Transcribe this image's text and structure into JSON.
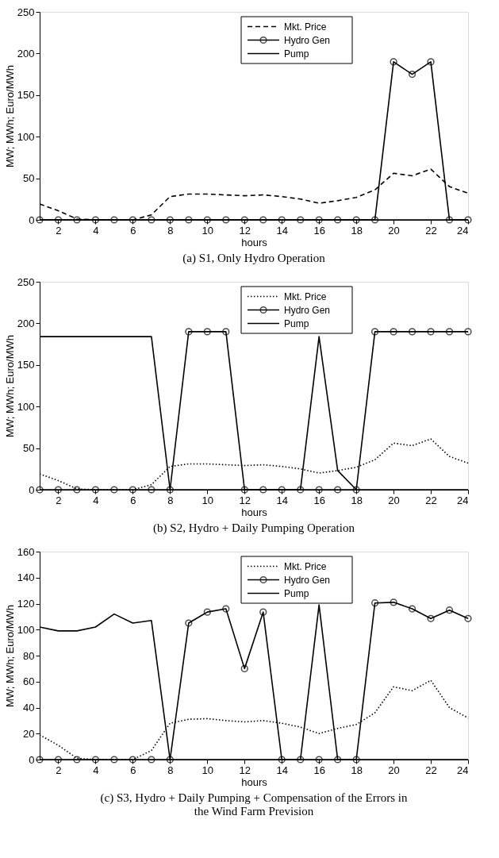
{
  "chart_data": [
    {
      "type": "line",
      "title": "(a) S1, Only Hydro Operation",
      "xlabel": "hours",
      "ylabel": "MW; MWh; Euro/MWh",
      "x": [
        1,
        2,
        3,
        4,
        5,
        6,
        7,
        8,
        9,
        10,
        11,
        12,
        13,
        14,
        15,
        16,
        17,
        18,
        19,
        20,
        21,
        22,
        23,
        24
      ],
      "xlim": [
        1,
        24
      ],
      "xticks": [
        2,
        4,
        6,
        8,
        10,
        12,
        14,
        16,
        18,
        20,
        22,
        24
      ],
      "ylim": [
        0,
        250
      ],
      "yticks": [
        0,
        50,
        100,
        150,
        200,
        250
      ],
      "grid": false,
      "legend": "top",
      "series": [
        {
          "name": "Mkt. Price",
          "color": "#000000",
          "line_style": "dashed",
          "marker": "none",
          "values": [
            19,
            11,
            1,
            0,
            0,
            0,
            6,
            28,
            31,
            31,
            30,
            29,
            30,
            28,
            25,
            20,
            23,
            27,
            36,
            56,
            53,
            61,
            40,
            32
          ]
        },
        {
          "name": "Hydro Gen",
          "color": "#000000",
          "line_style": "solid",
          "marker": "circle",
          "values": [
            0,
            0,
            0,
            0,
            0,
            0,
            0,
            0,
            0,
            0,
            0,
            0,
            0,
            0,
            0,
            0,
            0,
            0,
            0,
            190,
            175,
            190,
            0,
            0
          ]
        },
        {
          "name": "Pump",
          "color": "#000000",
          "line_style": "solid",
          "marker": "none",
          "values": [
            0,
            0,
            0,
            0,
            0,
            0,
            0,
            0,
            0,
            0,
            0,
            0,
            0,
            0,
            0,
            0,
            0,
            0,
            0,
            0,
            0,
            0,
            0,
            0
          ]
        }
      ]
    },
    {
      "type": "line",
      "title": "(b) S2, Hydro + Daily Pumping Operation",
      "xlabel": "hours",
      "ylabel": "MW; MWh; Euro/MWh",
      "x": [
        1,
        2,
        3,
        4,
        5,
        6,
        7,
        8,
        9,
        10,
        11,
        12,
        13,
        14,
        15,
        16,
        17,
        18,
        19,
        20,
        21,
        22,
        23,
        24
      ],
      "xlim": [
        1,
        24
      ],
      "xticks": [
        2,
        4,
        6,
        8,
        10,
        12,
        14,
        16,
        18,
        20,
        22,
        24
      ],
      "ylim": [
        0,
        250
      ],
      "yticks": [
        0,
        50,
        100,
        150,
        200,
        250
      ],
      "grid": false,
      "legend": "top",
      "series": [
        {
          "name": "Mkt. Price",
          "color": "#000000",
          "line_style": "dotted",
          "marker": "none",
          "values": [
            19,
            11,
            1,
            0,
            0,
            0,
            6,
            28,
            31,
            31,
            30,
            29,
            30,
            28,
            25,
            20,
            23,
            27,
            36,
            56,
            53,
            61,
            40,
            32
          ]
        },
        {
          "name": "Hydro Gen",
          "color": "#000000",
          "line_style": "solid",
          "marker": "circle",
          "values": [
            0,
            0,
            0,
            0,
            0,
            0,
            0,
            0,
            190,
            190,
            190,
            0,
            0,
            0,
            0,
            0,
            0,
            0,
            190,
            190,
            190,
            190,
            190,
            190
          ]
        },
        {
          "name": "Pump",
          "color": "#000000",
          "line_style": "solid",
          "marker": "none",
          "values": [
            184,
            184,
            184,
            184,
            184,
            184,
            184,
            0,
            0,
            0,
            0,
            0,
            0,
            0,
            0,
            184,
            23,
            0,
            0,
            0,
            0,
            0,
            0,
            0
          ]
        }
      ]
    },
    {
      "type": "line",
      "title": "(c) S3, Hydro + Daily Pumping + Compensation of the Errors in the Wind Farm Prevision",
      "xlabel": "hours",
      "ylabel": "MW; MWh; Euro/MWh",
      "x": [
        1,
        2,
        3,
        4,
        5,
        6,
        7,
        8,
        9,
        10,
        11,
        12,
        13,
        14,
        15,
        16,
        17,
        18,
        19,
        20,
        21,
        22,
        23,
        24
      ],
      "xlim": [
        1,
        24
      ],
      "xticks": [
        2,
        4,
        6,
        8,
        10,
        12,
        14,
        16,
        18,
        20,
        22,
        24
      ],
      "ylim": [
        0,
        160
      ],
      "yticks": [
        0,
        20,
        40,
        60,
        80,
        100,
        120,
        140,
        160
      ],
      "grid": false,
      "legend": "top",
      "series": [
        {
          "name": "Mkt. Price",
          "color": "#000000",
          "line_style": "dotted",
          "marker": "none",
          "values": [
            19,
            11,
            1,
            0,
            0,
            0,
            7,
            28,
            31,
            31.5,
            30,
            29,
            30,
            28,
            25,
            20,
            24,
            27,
            36,
            56,
            53,
            61,
            40,
            32
          ]
        },
        {
          "name": "Hydro Gen",
          "color": "#000000",
          "line_style": "solid",
          "marker": "circle",
          "values": [
            0,
            0,
            0,
            0,
            0,
            0,
            0,
            0,
            105,
            113.5,
            116,
            70,
            113.5,
            0,
            0,
            0,
            0,
            0,
            120.5,
            121,
            116,
            108.5,
            115,
            108.5
          ]
        },
        {
          "name": "Pump",
          "color": "#000000",
          "line_style": "solid",
          "marker": "none",
          "values": [
            102,
            99,
            99,
            102,
            112,
            105,
            107,
            0,
            0,
            0,
            0,
            0,
            0,
            0,
            0,
            119,
            0,
            0,
            0,
            0,
            0,
            0,
            0,
            0
          ]
        }
      ]
    }
  ]
}
